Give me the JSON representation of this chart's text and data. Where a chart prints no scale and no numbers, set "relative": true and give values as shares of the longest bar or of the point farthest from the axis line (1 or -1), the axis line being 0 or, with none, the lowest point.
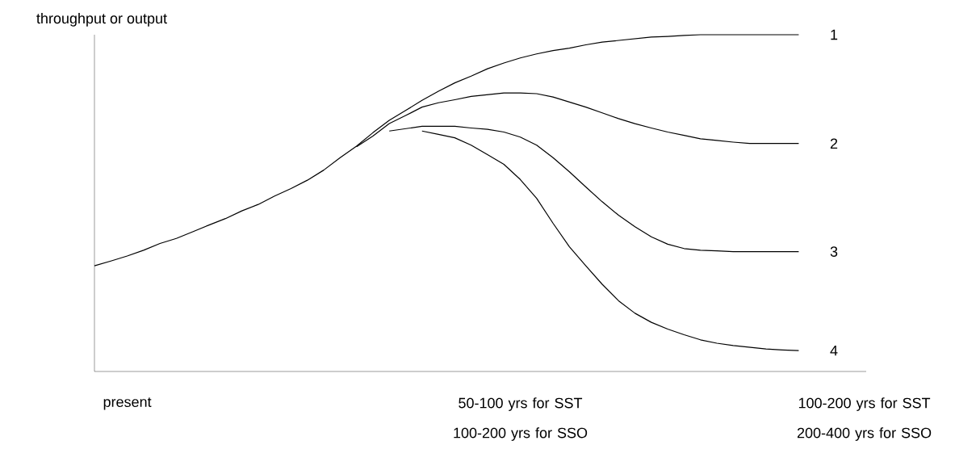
{
  "chart_data": {
    "type": "line",
    "relative": true,
    "ylabel": "throughput or output",
    "categories": [
      null,
      null,
      "present",
      null,
      null,
      null,
      null,
      null,
      null,
      null,
      null,
      null,
      null,
      null,
      null,
      null,
      null,
      null,
      null,
      null,
      null,
      null,
      null,
      null,
      null,
      null,
      "50-100 yrs for SST 100-200 yrs for SSO",
      null,
      null,
      null,
      null,
      null,
      null,
      null,
      null,
      null,
      null,
      null,
      null,
      null,
      null,
      null,
      null,
      null,
      null,
      null,
      null,
      "100-200 yrs for SST 200-400 yrs for SSO"
    ],
    "series": [
      {
        "name": "1",
        "color": "#000000",
        "values": [
          0.314,
          0.328,
          0.343,
          0.36,
          0.38,
          0.395,
          0.415,
          0.435,
          0.454,
          0.477,
          0.496,
          0.521,
          0.543,
          0.568,
          0.598,
          0.635,
          0.669,
          0.709,
          0.746,
          0.775,
          0.805,
          0.832,
          0.857,
          0.877,
          0.899,
          0.916,
          0.931,
          0.943,
          0.953,
          0.96,
          0.97,
          0.978,
          0.983,
          0.988,
          0.993,
          0.995,
          0.998,
          1,
          1,
          1,
          1,
          1,
          1,
          1,
          null,
          null,
          null,
          null
        ]
      },
      {
        "name": "2",
        "color": "#000000",
        "values": [
          null,
          null,
          null,
          null,
          null,
          null,
          null,
          null,
          null,
          null,
          null,
          null,
          null,
          null,
          null,
          null,
          0.667,
          0.699,
          0.736,
          0.76,
          0.785,
          0.798,
          0.807,
          0.817,
          0.822,
          0.827,
          0.827,
          0.825,
          0.815,
          0.8,
          0.785,
          0.768,
          0.751,
          0.736,
          0.723,
          0.711,
          0.701,
          0.691,
          0.686,
          0.681,
          0.677,
          0.677,
          0.677,
          0.677,
          null,
          null,
          null,
          null
        ]
      },
      {
        "name": "3",
        "color": "#000000",
        "values": [
          null,
          null,
          null,
          null,
          null,
          null,
          null,
          null,
          null,
          null,
          null,
          null,
          null,
          null,
          null,
          null,
          null,
          null,
          0.714,
          0.721,
          0.728,
          0.728,
          0.728,
          0.723,
          0.719,
          0.711,
          0.696,
          0.672,
          0.635,
          0.593,
          0.548,
          0.504,
          0.464,
          0.43,
          0.4,
          0.378,
          0.365,
          0.36,
          0.358,
          0.356,
          0.356,
          0.356,
          0.356,
          0.356,
          null,
          null,
          null,
          null
        ]
      },
      {
        "name": "4",
        "color": "#000000",
        "values": [
          null,
          null,
          null,
          null,
          null,
          null,
          null,
          null,
          null,
          null,
          null,
          null,
          null,
          null,
          null,
          null,
          null,
          null,
          null,
          null,
          0.714,
          0.704,
          0.694,
          0.672,
          0.644,
          0.615,
          0.57,
          0.514,
          0.44,
          0.37,
          0.314,
          0.259,
          0.21,
          0.173,
          0.146,
          0.126,
          0.109,
          0.094,
          0.084,
          0.077,
          0.072,
          0.067,
          0.064,
          0.062,
          null,
          null,
          null,
          null
        ]
      }
    ]
  }
}
